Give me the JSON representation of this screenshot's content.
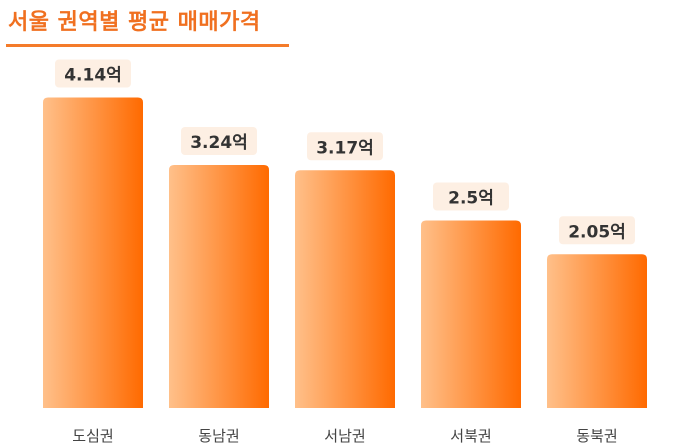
{
  "header": {
    "title": "서울 권역별 평균 매매가격"
  },
  "chart_data": {
    "type": "bar",
    "title": "서울 권역별 평균 매매가격",
    "categories": [
      "도심권",
      "동남권",
      "서남권",
      "서북권",
      "동북권"
    ],
    "values": [
      4.14,
      3.24,
      3.17,
      2.5,
      2.05
    ],
    "data_labels": [
      "4.14억",
      "3.24억",
      "3.17억",
      "2.5억",
      "2.05억"
    ],
    "xlabel": "",
    "ylabel": "",
    "ylim": [
      0,
      4.5
    ],
    "grid": false,
    "legend": "none",
    "colors": {
      "bar_light": "#ffc08a",
      "bar_dark": "#ff6a00",
      "label_bg": "#fdefe3",
      "title": "#f07020",
      "text": "#333333",
      "tick": "#444444"
    }
  }
}
